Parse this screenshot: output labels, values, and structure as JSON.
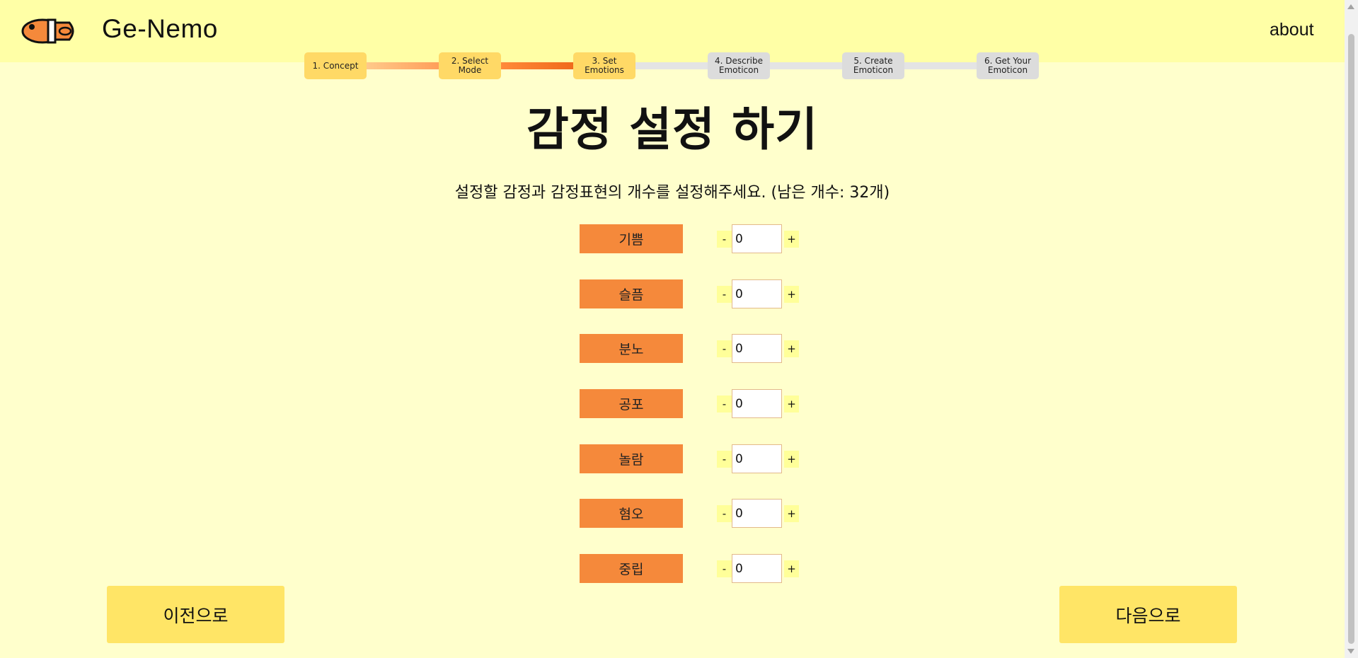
{
  "header": {
    "brand": "Ge-Nemo",
    "about_label": "about",
    "logo_icon": "goldfish-logo-icon"
  },
  "steps": [
    {
      "label": "1. Concept",
      "state": "done"
    },
    {
      "label": "2. Select Mode",
      "state": "done"
    },
    {
      "label": "3. Set\nEmotions",
      "state": "current"
    },
    {
      "label": "4. Describe\nEmoticon",
      "state": "todo"
    },
    {
      "label": "5. Create\nEmoticon",
      "state": "todo"
    },
    {
      "label": "6. Get Your\nEmoticon",
      "state": "todo"
    }
  ],
  "page": {
    "title": "감정 설정 하기",
    "subtitle": "설정할 감정과 감정표현의 개수를 설정해주세요. (남은 개수: 32개)"
  },
  "emotions": [
    {
      "label": "기쁨",
      "count": "0"
    },
    {
      "label": "슬픔",
      "count": "0"
    },
    {
      "label": "분노",
      "count": "0"
    },
    {
      "label": "공포",
      "count": "0"
    },
    {
      "label": "놀람",
      "count": "0"
    },
    {
      "label": "혐오",
      "count": "0"
    },
    {
      "label": "중립",
      "count": "0"
    }
  ],
  "controls": {
    "minus_label": "-",
    "plus_label": "+"
  },
  "nav": {
    "prev_label": "이전으로",
    "next_label": "다음으로"
  },
  "colors": {
    "background": "#ffffcc",
    "header": "#ffffa6",
    "emotion_label": "#f5893b",
    "step_done": "#ffd966",
    "step_todo": "#dcdcdc",
    "nav_button": "#ffe566"
  }
}
